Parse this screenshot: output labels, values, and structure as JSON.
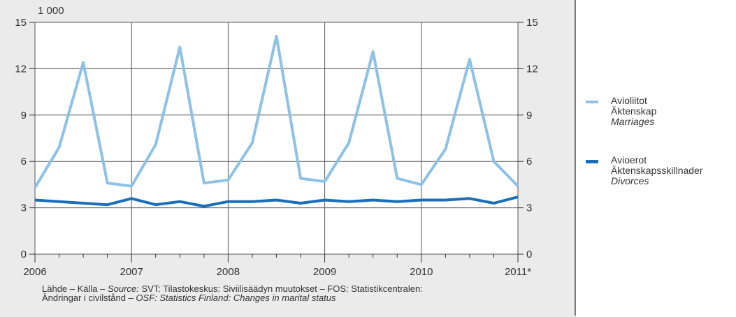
{
  "chart_data": {
    "type": "line",
    "unit_label": "1 000",
    "ylim": [
      0,
      15
    ],
    "yticks": [
      0,
      3,
      6,
      9,
      12,
      15
    ],
    "x_tick_labels": [
      "2006",
      "2007",
      "2008",
      "2009",
      "2010",
      "2011*"
    ],
    "x": [
      "2006Q1",
      "2006Q2",
      "2006Q3",
      "2006Q4",
      "2007Q1",
      "2007Q2",
      "2007Q3",
      "2007Q4",
      "2008Q1",
      "2008Q2",
      "2008Q3",
      "2008Q4",
      "2009Q1",
      "2009Q2",
      "2009Q3",
      "2009Q4",
      "2010Q1",
      "2010Q2",
      "2010Q3",
      "2010Q4",
      "2011Q1"
    ],
    "series": [
      {
        "name_lines": [
          "Avioliitot",
          "Äktenskap",
          "Marriages"
        ],
        "color": "#8ec1e6",
        "values": [
          4.3,
          6.9,
          12.4,
          4.6,
          4.4,
          7.1,
          13.4,
          4.6,
          4.8,
          7.2,
          14.1,
          4.9,
          4.7,
          7.2,
          13.1,
          4.9,
          4.5,
          6.8,
          12.6,
          6.0,
          4.4
        ]
      },
      {
        "name_lines": [
          "Avioerot",
          "Äktenskapsskillnader",
          "Divorces"
        ],
        "color": "#1a6fb8",
        "values": [
          3.5,
          3.4,
          3.3,
          3.2,
          3.6,
          3.2,
          3.4,
          3.1,
          3.4,
          3.4,
          3.5,
          3.3,
          3.5,
          3.4,
          3.5,
          3.4,
          3.5,
          3.5,
          3.6,
          3.3,
          3.7
        ]
      }
    ],
    "grid": true,
    "legend_position": "right"
  },
  "source": {
    "prefix": "Lähde – Källa – ",
    "source_italic": "Source:",
    "text1": " SVT: Tilastokeskus: Siviilisäädyn muutokset – FOS: Statistikcentralen:",
    "text2": "Ändringar i civilstånd – ",
    "osf_italic": "OSF:",
    "osf_rest": " Statistics Finland: Changes in marital status"
  }
}
